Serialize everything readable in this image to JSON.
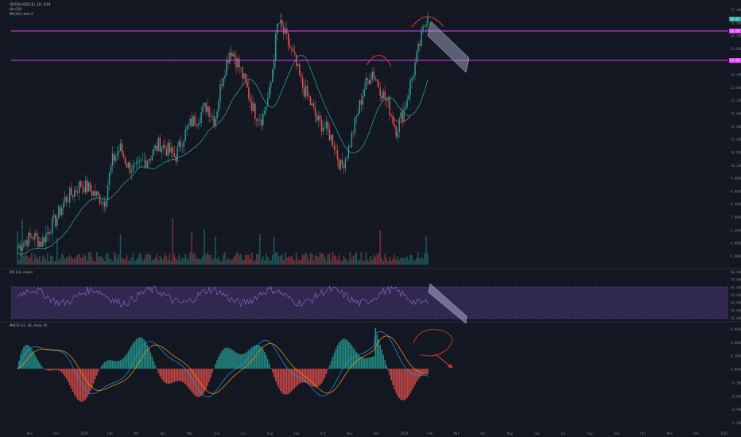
{
  "legend": {
    "main_line1": "QNTEK-USD(CE), 1D, 4/18",
    "main_line2": "Vol (20)",
    "main_line3": "MA(20) close 0",
    "rsi_title": "RSI (14, close)",
    "macd_title": "MACD (12, 26, close, 9)"
  },
  "price_axis": {
    "ticks": [
      "17.4000",
      "16.8000",
      "16.2000",
      "15.6000",
      "15.0000",
      "14.4000",
      "13.8000",
      "13.2000",
      "12.6000",
      "12.0000",
      "11.4000",
      "10.8000",
      "10.2000",
      "9.6000",
      "9.0000",
      "8.4000",
      "7.8000",
      "7.2000",
      "6.6000",
      "6.0000"
    ],
    "badge_top": "18.01",
    "badge_res1": "16.00",
    "badge_res2": "14.00"
  },
  "rsi_axis": {
    "ticks": [
      "80.0000",
      "70.0000",
      "60.0000",
      "50.0000",
      "40.0000",
      "30.0000",
      "20.0000"
    ]
  },
  "macd_axis": {
    "ticks": [
      "0.9000",
      "0.6000",
      "0.3000",
      "0.0000",
      "-0.3000",
      "-0.6000",
      "-0.9000",
      "-1.2000"
    ]
  },
  "time_axis": {
    "labels": [
      "Nov",
      "Dec",
      "2019",
      "Feb",
      "Mar",
      "Apr",
      "May",
      "Jun",
      "Jul",
      "Aug",
      "Sep",
      "Oct",
      "Nov",
      "Dec",
      "2020",
      "Feb",
      "Mar",
      "Apr",
      "May",
      "Jun",
      "Jul",
      "Aug",
      "Sep",
      "Oct",
      "Nov",
      "Dec",
      "2021"
    ]
  },
  "colors": {
    "background": "#131722",
    "grid": "#1f2330",
    "up": "#26a69a",
    "down": "#ef5350",
    "resistance": "#e040fb",
    "ma": "#2a9d8f",
    "rsi_band": "#7e57c2",
    "rsi_line": "#9c6cd4",
    "macd_line": "#2196f3",
    "signal_line": "#ff9800",
    "annotation": "#e53935",
    "projection": "#b0b8d4"
  },
  "chart_data": [
    {
      "type": "candlestick",
      "title": "",
      "ylim": [
        6.0,
        17.6
      ],
      "resistance_levels": [
        16.0,
        14.0
      ],
      "annotations": [
        "arc-top-left",
        "arc-bottom",
        "arc-top-right",
        "projection-channel"
      ],
      "approx_closes": [
        6.8,
        7.1,
        7.3,
        7.0,
        7.6,
        8.1,
        8.9,
        9.2,
        9.6,
        9.4,
        9.1,
        8.8,
        10.6,
        11.2,
        10.4,
        10.2,
        10.6,
        10.9,
        11.4,
        11.1,
        10.8,
        11.7,
        12.3,
        12.6,
        13.1,
        12.4,
        14.4,
        15.6,
        14.9,
        13.9,
        12.8,
        12.5,
        13.7,
        16.8,
        16.1,
        15.2,
        14.0,
        13.3,
        12.4,
        12.1,
        11.5,
        10.3,
        11.2,
        12.6,
        13.9,
        14.6,
        13.8,
        13.1,
        12.0,
        12.9,
        14.3,
        15.8,
        17.2
      ]
    },
    {
      "type": "line",
      "title": "RSI (14, close)",
      "ylim": [
        20,
        80
      ],
      "bands": [
        70,
        30
      ]
    },
    {
      "type": "bar",
      "title": "MACD (12, 26, close, 9)",
      "ylim": [
        -1.2,
        0.9
      ]
    }
  ]
}
